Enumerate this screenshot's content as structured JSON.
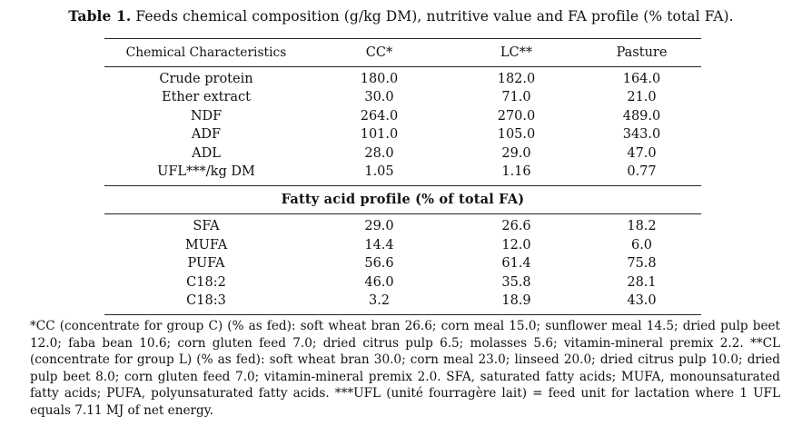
{
  "caption": {
    "label": "Table 1.",
    "text": "Feeds chemical composition (g/kg DM), nutritive value and FA profile (% total FA)."
  },
  "table": {
    "headers": [
      "Chemical Characteristics",
      "CC*",
      "LC**",
      "Pasture"
    ],
    "chemical_rows": [
      [
        "Crude protein",
        "180.0",
        "182.0",
        "164.0"
      ],
      [
        "Ether extract",
        "30.0",
        "71.0",
        "21.0"
      ],
      [
        "NDF",
        "264.0",
        "270.0",
        "489.0"
      ],
      [
        "ADF",
        "101.0",
        "105.0",
        "343.0"
      ],
      [
        "ADL",
        "28.0",
        "29.0",
        "47.0"
      ],
      [
        "UFL***/kg DM",
        "1.05",
        "1.16",
        "0.77"
      ]
    ],
    "section_title": "Fatty acid profile (% of total FA)",
    "fa_rows": [
      [
        "SFA",
        "29.0",
        "26.6",
        "18.2"
      ],
      [
        "MUFA",
        "14.4",
        "12.0",
        "6.0"
      ],
      [
        "PUFA",
        "56.6",
        "61.4",
        "75.8"
      ],
      [
        "C18:2",
        "46.0",
        "35.8",
        "28.1"
      ],
      [
        "C18:3",
        "3.2",
        "18.9",
        "43.0"
      ]
    ]
  },
  "footnote": "*CC (concentrate for group C) (% as fed): soft wheat bran 26.6; corn meal 15.0; sunflower meal 14.5; dried pulp beet 12.0; faba bean 10.6; corn gluten feed 7.0; dried citrus pulp 6.5; molasses 5.6; vitamin-mineral premix 2.2. **CL (concentrate for group L) (% as fed): soft wheat bran 30.0; corn meal 23.0; linseed 20.0; dried citrus pulp 10.0; dried pulp beet 8.0; corn gluten feed 7.0; vitamin-mineral premix 2.0. SFA, saturated fatty acids; MUFA, monounsaturated fatty acids; PUFA, polyunsaturated fatty acids. ***UFL (unité fourragère lait) = feed unit for lactation where 1 UFL equals 7.11 MJ of net energy."
}
